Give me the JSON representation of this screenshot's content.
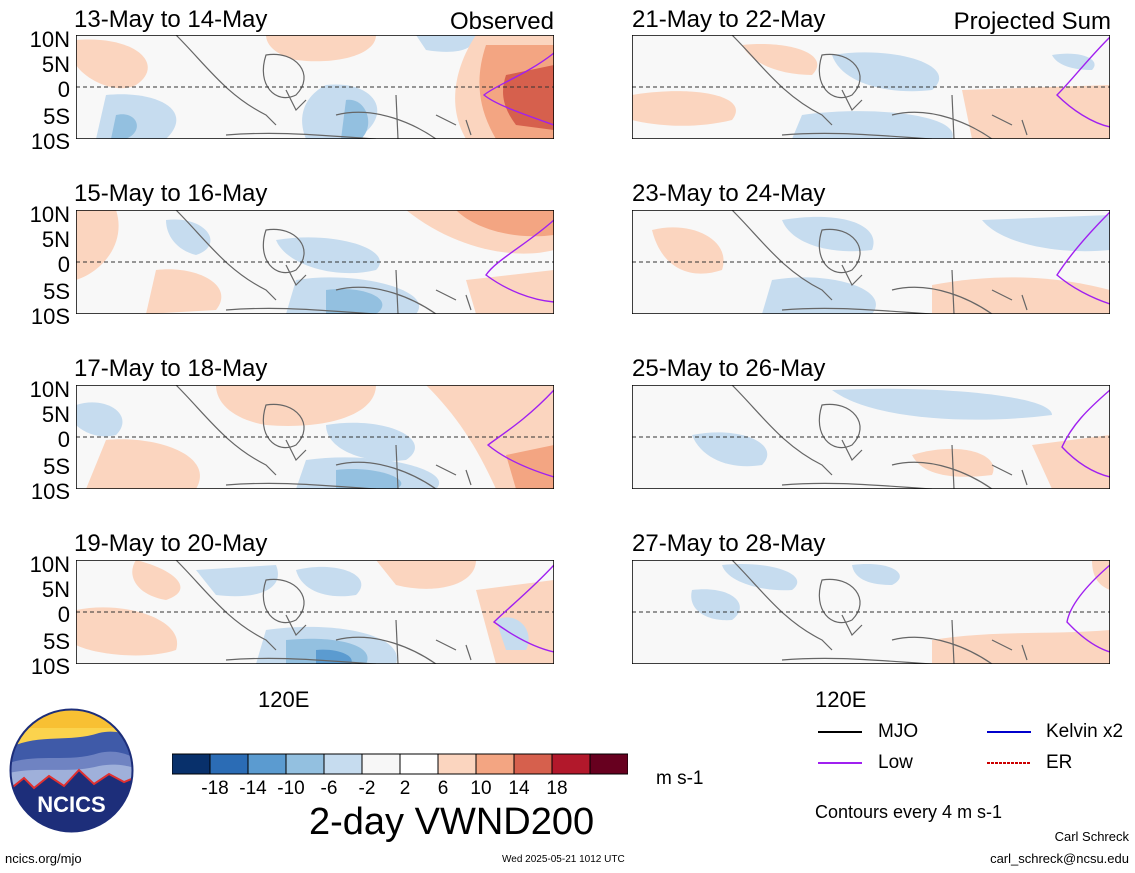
{
  "panels": [
    {
      "id": "p1",
      "title": "13-May to 14-May",
      "tag": "Observed"
    },
    {
      "id": "p2",
      "title": "15-May to 16-May",
      "tag": ""
    },
    {
      "id": "p3",
      "title": "17-May to 18-May",
      "tag": ""
    },
    {
      "id": "p4",
      "title": "19-May to 20-May",
      "tag": ""
    },
    {
      "id": "p5",
      "title": "21-May to 22-May",
      "tag": "Projected Sum"
    },
    {
      "id": "p6",
      "title": "23-May to 24-May",
      "tag": ""
    },
    {
      "id": "p7",
      "title": "25-May to 26-May",
      "tag": ""
    },
    {
      "id": "p8",
      "title": "27-May to 28-May",
      "tag": ""
    }
  ],
  "lat_labels": [
    "10N",
    "5N",
    "0",
    "5S",
    "10S"
  ],
  "lon_label": "120E",
  "colorbar": {
    "colors": [
      "#08306b",
      "#2b6cb5",
      "#5b9bd0",
      "#93c0e0",
      "#c6dcef",
      "#f7f7f7",
      "#ffffff",
      "#fbd5bf",
      "#f3a582",
      "#d6604d",
      "#b2182b",
      "#67001f"
    ],
    "labels": [
      "-18",
      "-14",
      "-10",
      "-6",
      "-2",
      "2",
      "6",
      "10",
      "14",
      "18"
    ],
    "units": "m s-1",
    "title": "2-day VWND200"
  },
  "legend": {
    "items": [
      {
        "label": "MJO",
        "color": "#000000"
      },
      {
        "label": "Kelvin x2",
        "color": "#0000cc"
      },
      {
        "label": "Low",
        "color": "#a020f0"
      },
      {
        "label": "ER",
        "color": "#cc0000"
      }
    ],
    "contour_note": "Contours every 4 m s-1"
  },
  "credits": {
    "logo_text": "NCICS",
    "site": "ncics.org/mjo",
    "timestamp": "Wed 2025-05-21 1012 UTC",
    "author": "Carl Schreck",
    "email": "carl_schreck@ncsu.edu"
  }
}
